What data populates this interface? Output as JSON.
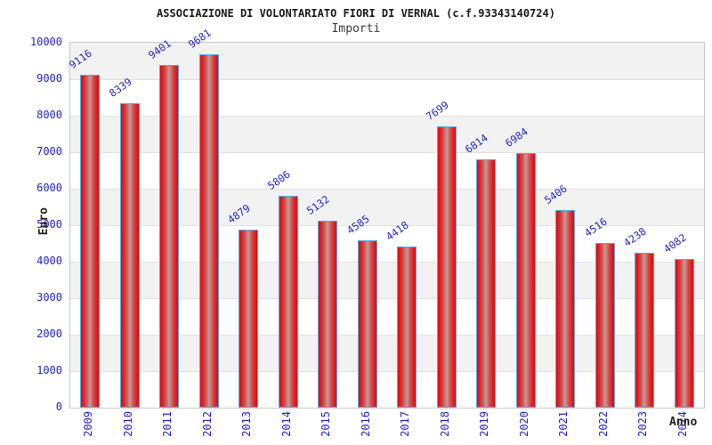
{
  "chart_data": {
    "type": "bar",
    "title": "ASSOCIAZIONE DI VOLONTARIATO FIORI DI VERNAL (c.f.93343140724)",
    "subtitle": "Importi",
    "xlabel": "Anno",
    "ylabel": "Euro",
    "categories": [
      "2009",
      "2010",
      "2011",
      "2012",
      "2013",
      "2014",
      "2015",
      "2016",
      "2017",
      "2018",
      "2019",
      "2020",
      "2021",
      "2022",
      "2023",
      "2024"
    ],
    "values": [
      9116,
      8339,
      9401,
      9681,
      4879,
      5806,
      5132,
      4585,
      4418,
      7699,
      6814,
      6984,
      5406,
      4516,
      4238,
      4082
    ],
    "ylim": [
      0,
      10000
    ],
    "ytick_step": 1000,
    "grid": "alternating horizontal bands",
    "legend": "none",
    "colors": {
      "tick_label": "#2424cc",
      "value_label": "#2424cc",
      "bar_edge_red": "#dc0e14",
      "bar_center": "#c49a9a",
      "bar_border": "#5fa8e0",
      "band_gray": "#f2f2f2",
      "band_white": "#ffffff",
      "plot_border": "#c9c9c9",
      "title_text": "#1a1a1a"
    }
  }
}
